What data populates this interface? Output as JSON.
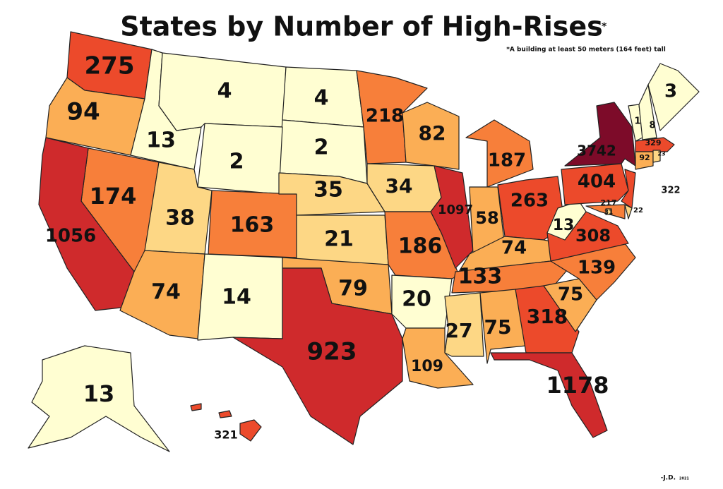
{
  "header": {
    "title": "States by Number of High-Rises",
    "title_mark": "*",
    "note": "*A building at least 50 meters (164 feet) tall"
  },
  "signature": {
    "author": "-J.D.",
    "year": "2021"
  },
  "regions": [
    {
      "value": 275,
      "color": "#ec4a2b"
    },
    {
      "value": 94,
      "color": "#fbae55"
    },
    {
      "value": 13,
      "color": "#fffed2"
    },
    {
      "value": 4,
      "color": "#fffed2"
    },
    {
      "value": 4,
      "color": "#fffed2"
    },
    {
      "value": 2,
      "color": "#fffed2"
    },
    {
      "value": 2,
      "color": "#fffed2"
    },
    {
      "value": 174,
      "color": "#f77f3a"
    },
    {
      "value": 1056,
      "color": "#cf2a2c"
    },
    {
      "value": 38,
      "color": "#fdd785"
    },
    {
      "value": 74,
      "color": "#fbae55"
    },
    {
      "value": 163,
      "color": "#f77f3a"
    },
    {
      "value": 14,
      "color": "#fffed2"
    },
    {
      "value": 35,
      "color": "#fdd785"
    },
    {
      "value": 21,
      "color": "#fdd785"
    },
    {
      "value": 79,
      "color": "#fbae55"
    },
    {
      "value": 923,
      "color": "#cf2a2c"
    },
    {
      "value": 218,
      "color": "#f77f3a"
    },
    {
      "value": 34,
      "color": "#fdd785"
    },
    {
      "value": 186,
      "color": "#f77f3a"
    },
    {
      "value": 20,
      "color": "#fffed2"
    },
    {
      "value": 109,
      "color": "#fbae55"
    },
    {
      "value": 82,
      "color": "#fbae55"
    },
    {
      "value": 1097,
      "color": "#cf2a2c"
    },
    {
      "value": 187,
      "color": "#f77f3a"
    },
    {
      "value": 58,
      "color": "#fbae55"
    },
    {
      "value": 263,
      "color": "#ec4a2b"
    },
    {
      "value": 74,
      "color": "#fbae55"
    },
    {
      "value": 133,
      "color": "#f77f3a"
    },
    {
      "value": 27,
      "color": "#fdd785"
    },
    {
      "value": 75,
      "color": "#fbae55"
    },
    {
      "value": 318,
      "color": "#ec4a2b"
    },
    {
      "value": 1178,
      "color": "#cf2a2c"
    },
    {
      "value": 75,
      "color": "#fbae55"
    },
    {
      "value": 139,
      "color": "#f77f3a"
    },
    {
      "value": 308,
      "color": "#ec4a2b"
    },
    {
      "value": 13,
      "color": "#fffed2"
    },
    {
      "value": 404,
      "color": "#ec4a2b"
    },
    {
      "value": 3742,
      "color": "#7d0b29"
    },
    {
      "value": 322,
      "color": "#ec4a2b"
    },
    {
      "value": 22,
      "color": "#fdd785"
    },
    {
      "value": 217,
      "color": "#f77f3a"
    },
    {
      "value": 31,
      "color": "#fdd785"
    },
    {
      "value": 1,
      "color": "#fffed2"
    },
    {
      "value": 8,
      "color": "#fffed2"
    },
    {
      "value": 3,
      "color": "#fffed2"
    },
    {
      "value": 329,
      "color": "#ec4a2b"
    },
    {
      "value": 92,
      "color": "#fbae55"
    },
    {
      "value": 23,
      "color": "#fdd785"
    },
    {
      "value": 13,
      "color": "#fffed2"
    },
    {
      "value": 321,
      "color": "#ec4a2b"
    }
  ]
}
